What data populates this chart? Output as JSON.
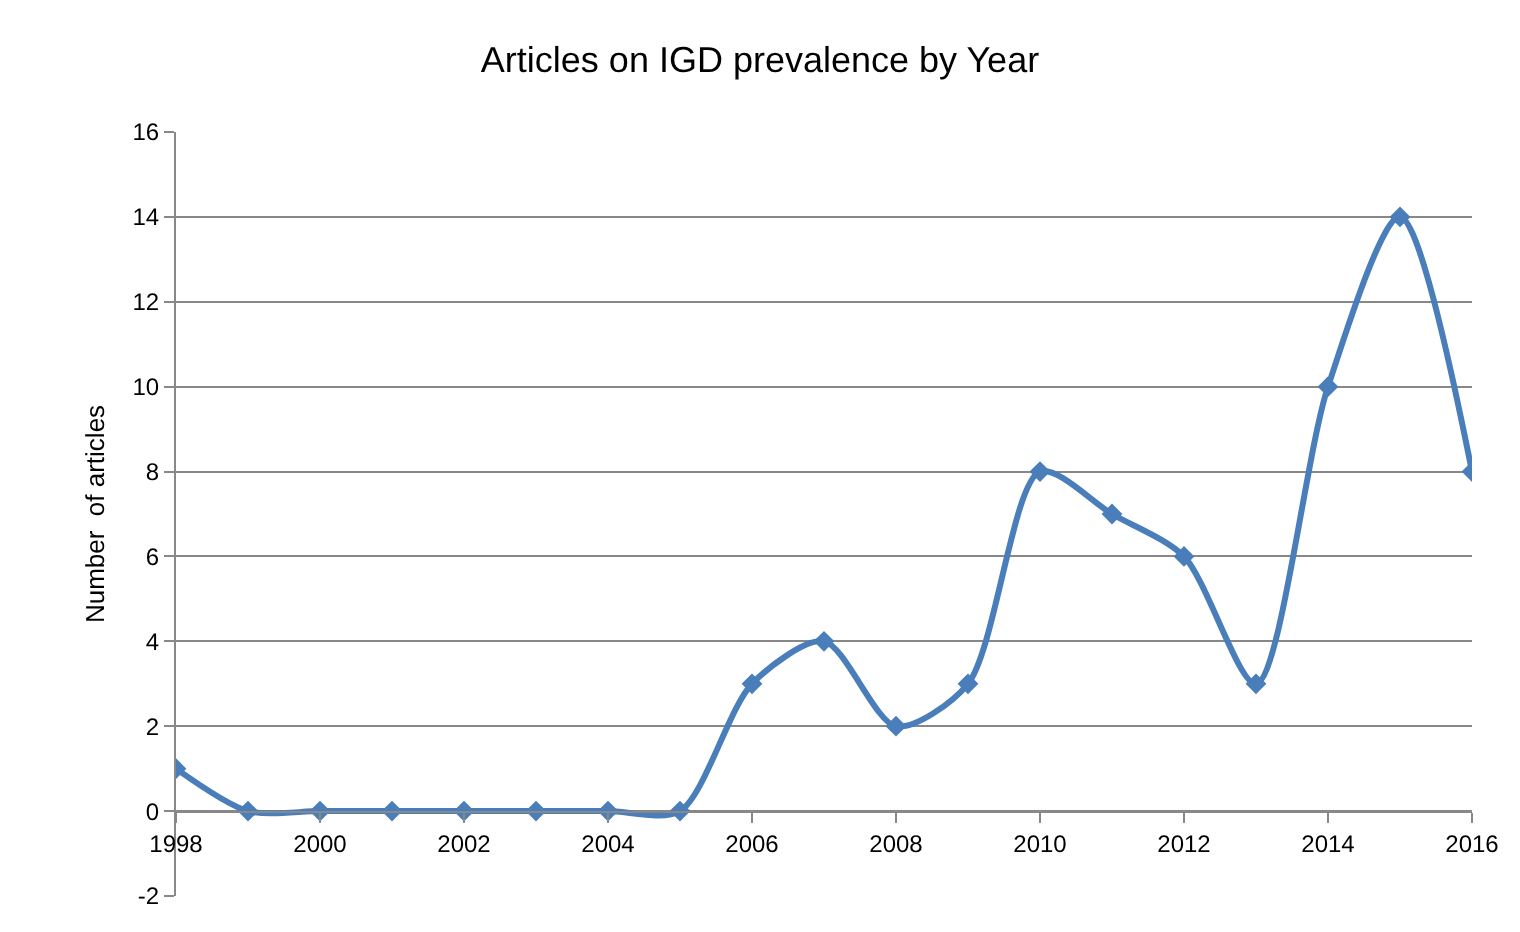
{
  "chart_data": {
    "type": "line",
    "title": "Articles on IGD prevalence by Year",
    "ylabel": "Number  of articles",
    "x": [
      1998,
      1999,
      2000,
      2001,
      2002,
      2003,
      2004,
      2005,
      2006,
      2007,
      2008,
      2009,
      2010,
      2011,
      2012,
      2013,
      2014,
      2015,
      2016
    ],
    "series": [
      {
        "color": "#4a7ebb",
        "values": [
          1,
          0,
          0,
          0,
          0,
          0,
          0,
          0,
          3,
          4,
          2,
          3,
          8,
          7,
          6,
          3,
          10,
          14,
          8
        ]
      }
    ],
    "xlim": [
      1998,
      2016
    ],
    "xticks": [
      1998,
      2000,
      2002,
      2004,
      2006,
      2008,
      2010,
      2012,
      2014,
      2016
    ],
    "ylim": [
      -2,
      16
    ],
    "yticks": [
      -2,
      0,
      2,
      4,
      6,
      8,
      10,
      12,
      14,
      16
    ],
    "grid": "y",
    "marker": "diamond",
    "line_style": "solid"
  }
}
